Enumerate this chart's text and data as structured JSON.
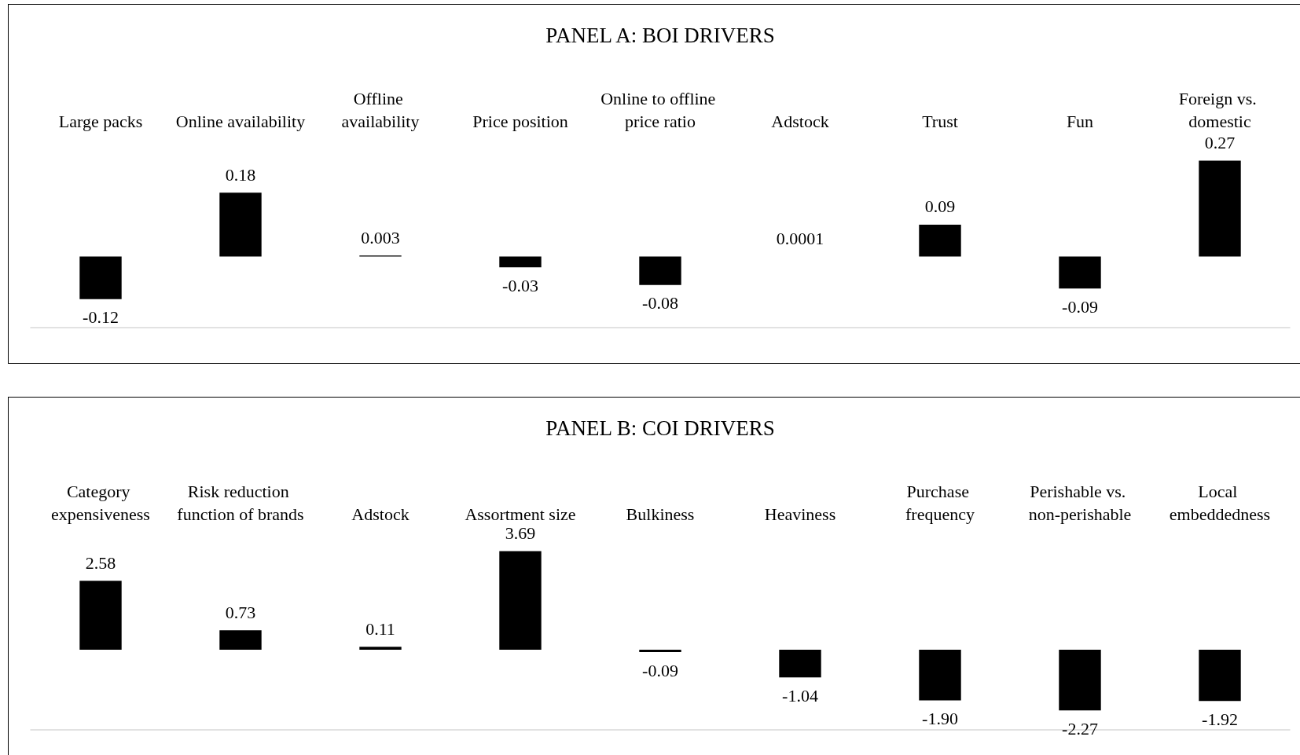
{
  "chart_data": [
    {
      "type": "bar",
      "title": "PANEL A: BOI DRIVERS",
      "categories": [
        "Large packs",
        "Online availability",
        "Offline availability",
        "Price position",
        "Online to offline price ratio",
        "Adstock",
        "Trust",
        "Fun",
        "Foreign vs. domestic"
      ],
      "values": [
        -0.12,
        0.18,
        0.003,
        -0.03,
        -0.08,
        0.0001,
        0.09,
        -0.09,
        0.27
      ],
      "value_labels": [
        "-0.12",
        "0.18",
        "0.003",
        "-0.03",
        "-0.08",
        "0.0001",
        "0.09",
        "-0.09",
        "0.27"
      ],
      "color": "#000000"
    },
    {
      "type": "bar",
      "title": "PANEL B: COI DRIVERS",
      "categories": [
        "Category expensiveness",
        "Risk reduction function of brands",
        "Adstock",
        "Assortment size",
        "Bulkiness",
        "Heaviness",
        "Purchase frequency",
        "Perishable vs. non-perishable",
        "Local embeddedness"
      ],
      "values": [
        2.58,
        0.73,
        0.11,
        3.69,
        -0.09,
        -1.04,
        -1.9,
        -2.27,
        -1.92
      ],
      "value_labels": [
        "2.58",
        "0.73",
        "0.11",
        "3.69",
        "-0.09",
        "-1.04",
        "-1.90",
        "-2.27",
        "-1.92"
      ],
      "color": "#000000"
    }
  ]
}
